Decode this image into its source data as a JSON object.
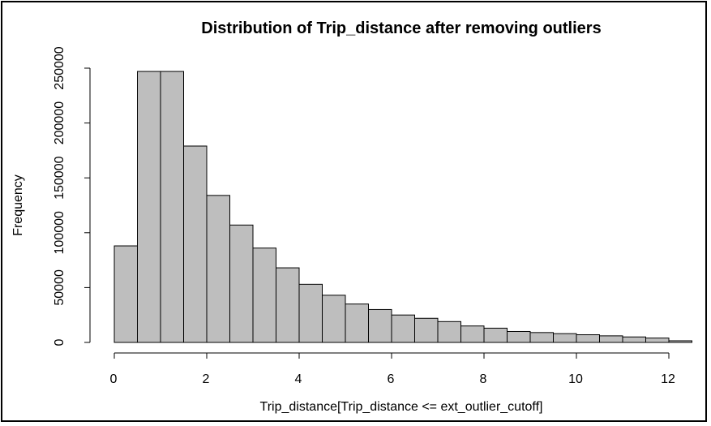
{
  "chart_data": {
    "type": "bar",
    "title": "Distribution of Trip_distance after removing outliers",
    "xlabel": "Trip_distance[Trip_distance <= ext_outlier_cutoff]",
    "ylabel": "Frequency",
    "xlim": [
      0,
      12.5
    ],
    "ylim": [
      0,
      250000
    ],
    "x_ticks": [
      "0",
      "2",
      "4",
      "6",
      "8",
      "10",
      "12"
    ],
    "y_ticks": [
      "0",
      "50000",
      "100000",
      "150000",
      "200000",
      "250000"
    ],
    "bin_width": 0.5,
    "bins_start": [
      0,
      0.5,
      1,
      1.5,
      2,
      2.5,
      3,
      3.5,
      4,
      4.5,
      5,
      5.5,
      6,
      6.5,
      7,
      7.5,
      8,
      8.5,
      9,
      9.5,
      10,
      10.5,
      11,
      11.5,
      12
    ],
    "values": [
      88000,
      247000,
      247000,
      179000,
      134000,
      107000,
      86000,
      68000,
      53000,
      43000,
      35000,
      30000,
      25000,
      22000,
      19000,
      15000,
      13000,
      10000,
      9000,
      8000,
      7000,
      6000,
      5000,
      4000,
      1500
    ],
    "bar_color": "#bebebe",
    "grid": false,
    "legend": "none"
  }
}
